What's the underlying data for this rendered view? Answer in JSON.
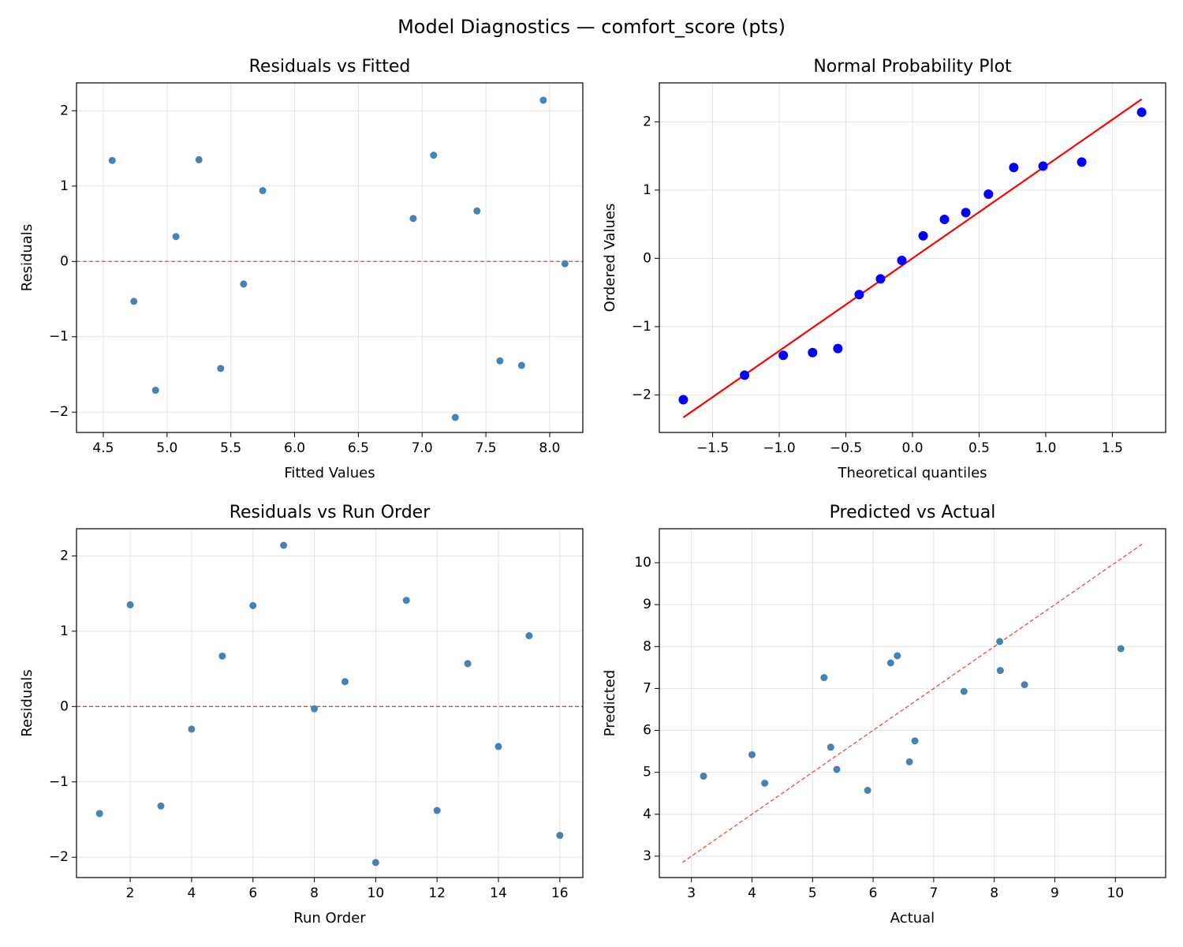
{
  "title": "Model Diagnostics — comfort_score (pts)",
  "chart_data": [
    {
      "type": "scatter",
      "title": "Residuals vs Fitted",
      "xlabel": "Fitted Values",
      "ylabel": "Residuals",
      "x": [
        5.42,
        5.25,
        7.61,
        5.6,
        7.43,
        4.57,
        7.95,
        8.12,
        5.07,
        7.26,
        7.09,
        7.78,
        6.93,
        4.74,
        5.75,
        4.91
      ],
      "values": [
        -1.42,
        1.35,
        -1.32,
        -0.3,
        0.67,
        1.34,
        2.14,
        -0.03,
        0.33,
        -2.07,
        1.41,
        -1.38,
        0.57,
        -0.53,
        0.94,
        -1.71
      ],
      "color": "#4682b4",
      "lines": [
        {
          "y": 0,
          "color": "#ff0000",
          "dashed": true
        }
      ],
      "xlim": [
        4.29,
        8.26
      ],
      "ylim": [
        -2.27,
        2.37
      ],
      "xticks": [
        4.5,
        {
          "value": 5,
          "label": "5.0"
        },
        5.5,
        {
          "value": 6,
          "label": "6.0"
        },
        6.5,
        {
          "value": 7,
          "label": "7.0"
        },
        7.5,
        {
          "value": 8,
          "label": "8.0"
        }
      ],
      "yticks": [
        {
          "value": -2,
          "label": "−2"
        },
        {
          "value": -1,
          "label": "−1"
        },
        0,
        1,
        2
      ],
      "grid": true
    },
    {
      "type": "scatter",
      "title": "Normal Probability Plot",
      "xlabel": "Theoretical quantiles",
      "ylabel": "Ordered Values",
      "x": [
        -1.72,
        -1.26,
        -0.97,
        -0.75,
        -0.56,
        -0.4,
        -0.24,
        -0.08,
        0.08,
        0.24,
        0.4,
        0.57,
        0.76,
        0.98,
        1.27,
        1.72
      ],
      "values": [
        -2.07,
        -1.71,
        -1.42,
        -1.38,
        -1.32,
        -0.53,
        -0.3,
        -0.03,
        0.33,
        0.57,
        0.67,
        0.94,
        1.33,
        1.35,
        1.41,
        2.14
      ],
      "color": "#0000ff",
      "lines": [
        {
          "x": [
            -1.72,
            1.72
          ],
          "values": [
            -2.33,
            2.33
          ],
          "color": "#ff0000",
          "dashed": false
        }
      ],
      "xlim": [
        -1.9,
        1.9
      ],
      "ylim": [
        -2.55,
        2.57
      ],
      "xticks": [
        {
          "value": -1.5,
          "label": "−1.5"
        },
        {
          "value": -1,
          "label": "−1.0"
        },
        {
          "value": -0.5,
          "label": "−0.5"
        },
        {
          "value": 0,
          "label": "0.0"
        },
        0.5,
        {
          "value": 1,
          "label": "1.0"
        },
        1.5
      ],
      "yticks": [
        {
          "value": -2,
          "label": "−2"
        },
        {
          "value": -1,
          "label": "−1"
        },
        0,
        1,
        2
      ],
      "grid": true
    },
    {
      "type": "scatter",
      "title": "Residuals vs Run Order",
      "xlabel": "Run Order",
      "ylabel": "Residuals",
      "x": [
        1,
        2,
        3,
        4,
        5,
        6,
        7,
        8,
        9,
        10,
        11,
        12,
        13,
        14,
        15,
        16
      ],
      "values": [
        -1.42,
        1.35,
        -1.32,
        -0.3,
        0.67,
        1.34,
        2.14,
        -0.03,
        0.33,
        -2.07,
        1.41,
        -1.38,
        0.57,
        -0.53,
        0.94,
        -1.71
      ],
      "color": "#4682b4",
      "lines": [
        {
          "y": 0,
          "color": "#ff0000",
          "dashed": true
        }
      ],
      "xlim": [
        0.25,
        16.75
      ],
      "ylim": [
        -2.27,
        2.36
      ],
      "xticks": [
        2,
        4,
        6,
        8,
        10,
        12,
        14,
        16
      ],
      "yticks": [
        {
          "value": -2,
          "label": "−2"
        },
        {
          "value": -1,
          "label": "−1"
        },
        0,
        1,
        2
      ],
      "grid": true
    },
    {
      "type": "scatter",
      "title": "Predicted vs Actual",
      "xlabel": "Actual",
      "ylabel": "Predicted",
      "x": [
        4.0,
        6.6,
        6.29,
        5.3,
        8.1,
        5.91,
        10.09,
        8.09,
        5.4,
        5.19,
        8.5,
        6.4,
        7.5,
        4.21,
        6.69,
        3.2
      ],
      "values": [
        5.42,
        5.25,
        7.61,
        5.6,
        7.43,
        4.57,
        7.95,
        8.12,
        5.07,
        7.26,
        7.09,
        7.78,
        6.93,
        4.74,
        5.75,
        4.91
      ],
      "color": "#4682b4",
      "lines": [
        {
          "x": [
            2.85,
            10.45
          ],
          "values": [
            2.85,
            10.45
          ],
          "color": "#ff0000",
          "dashed": true
        }
      ],
      "xlim": [
        2.47,
        10.83
      ],
      "ylim": [
        2.49,
        10.81
      ],
      "xticks": [
        3,
        4,
        5,
        6,
        7,
        8,
        9,
        10
      ],
      "yticks": [
        3,
        4,
        5,
        6,
        7,
        8,
        9,
        10
      ],
      "grid": true
    }
  ]
}
